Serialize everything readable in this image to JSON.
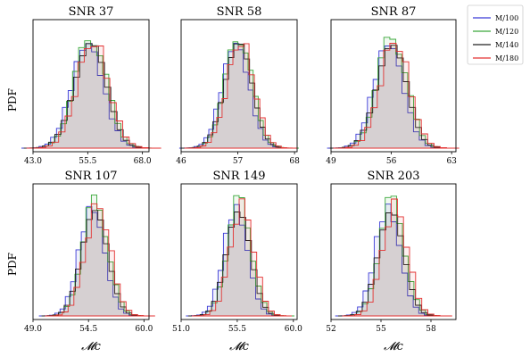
{
  "figure": {
    "ylabel": "PDF",
    "xlabel": "𝓜c"
  },
  "legend": {
    "placement": "top-right, outside panels",
    "entries": [
      {
        "label": "M/100",
        "color": "#3b3bd6"
      },
      {
        "label": "M/120",
        "color": "#3aa83a"
      },
      {
        "label": "M/140",
        "color": "#222222"
      },
      {
        "label": "M/180",
        "color": "#e33030"
      }
    ]
  },
  "chart_data": [
    {
      "type": "histogram",
      "title": "SNR 37",
      "xlim": [
        43.0,
        69.5
      ],
      "ticks": [
        "43.0",
        "55.5",
        "68.0"
      ],
      "tick_values": [
        43.0,
        55.5,
        68.0
      ],
      "center": 56.0,
      "sigma": 3.6,
      "bin_width": 1.4,
      "shift": 0.6
    },
    {
      "type": "histogram",
      "title": "SNR 58",
      "xlim": [
        46,
        68.5
      ],
      "ticks": [
        "46",
        "57",
        "68"
      ],
      "tick_values": [
        46,
        57,
        68
      ],
      "center": 57.0,
      "sigma": 2.6,
      "bin_width": 1.0,
      "shift": 0.5
    },
    {
      "type": "histogram",
      "title": "SNR 87",
      "xlim": [
        49,
        63.5
      ],
      "ticks": [
        "49",
        "56",
        "63"
      ],
      "tick_values": [
        49,
        56,
        63
      ],
      "center": 56.0,
      "sigma": 1.7,
      "bin_width": 0.7,
      "shift": 0.35
    },
    {
      "type": "histogram",
      "title": "SNR 107",
      "xlim": [
        49.0,
        60.5
      ],
      "ticks": [
        "49.0",
        "54.5",
        "60.0"
      ],
      "tick_values": [
        49.0,
        54.5,
        60.0
      ],
      "center": 55.1,
      "sigma": 1.25,
      "bin_width": 0.55,
      "shift": 0.3
    },
    {
      "type": "histogram",
      "title": "SNR 149",
      "xlim": [
        51.0,
        60.3
      ],
      "ticks": [
        "51.0",
        "55.5",
        "60.0"
      ],
      "tick_values": [
        51.0,
        55.5,
        60.0
      ],
      "center": 55.6,
      "sigma": 0.95,
      "bin_width": 0.45,
      "shift": 0.25
    },
    {
      "type": "histogram",
      "title": "SNR 203",
      "xlim": [
        52,
        59.5
      ],
      "ticks": [
        "52",
        "55",
        "58"
      ],
      "tick_values": [
        52,
        55,
        58
      ],
      "center": 55.6,
      "sigma": 0.75,
      "bin_width": 0.35,
      "shift": 0.22
    }
  ]
}
